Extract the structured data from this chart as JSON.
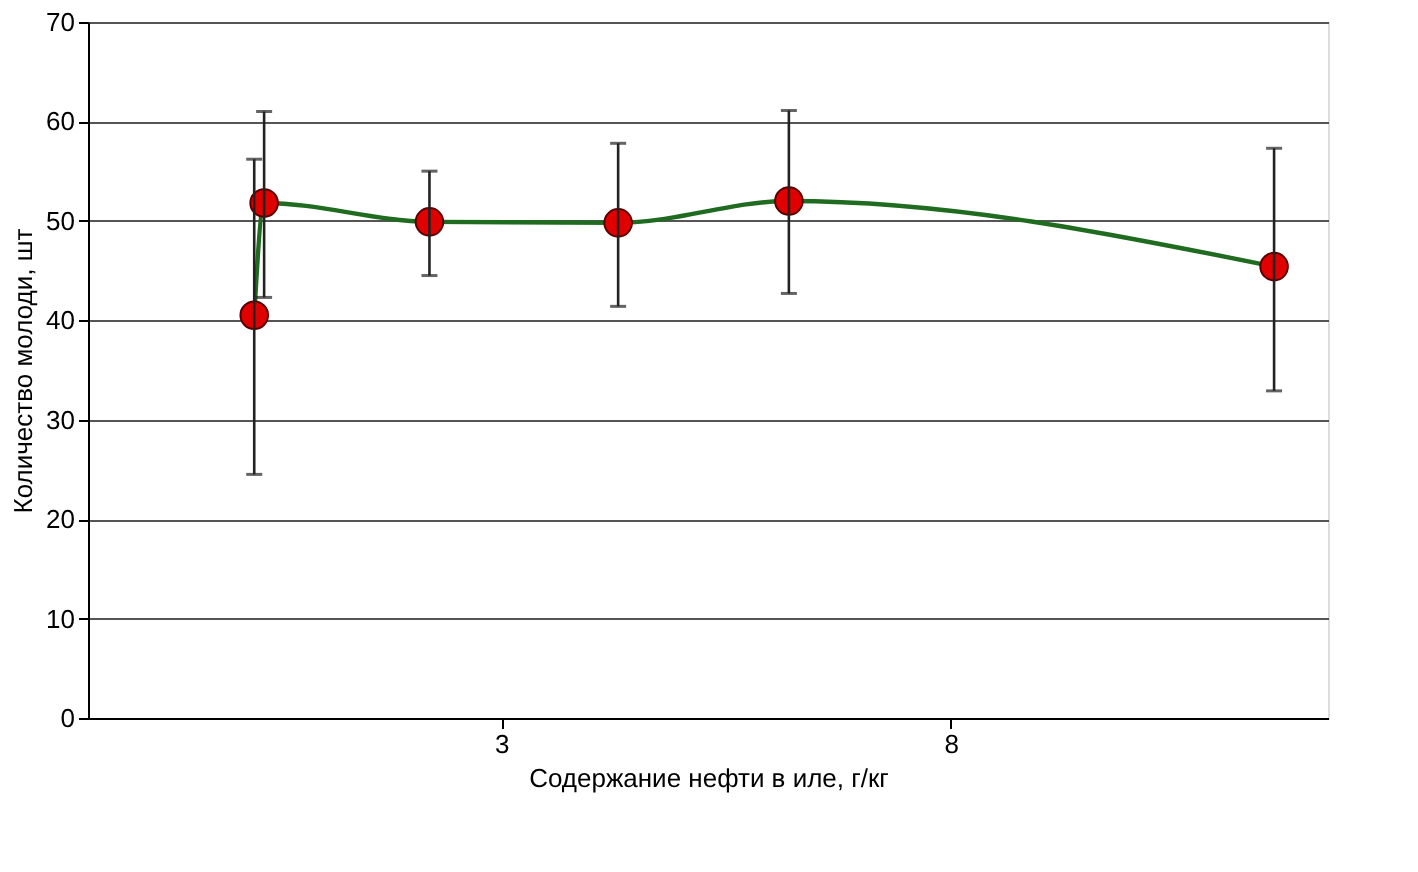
{
  "chart_data": {
    "type": "scatter",
    "xlabel": "Содержание нефти в иле, г/кг",
    "ylabel": "Количество молоди, шт",
    "x": [
      0.25,
      0.36,
      2.2,
      4.3,
      6.2,
      11.6
    ],
    "series": [
      {
        "type": "line",
        "color": "#1f6b1f",
        "values": [
          40.5,
          51.8,
          49.9,
          49.8,
          52,
          45.4
        ]
      },
      {
        "marker": "circle",
        "color": "#e00000",
        "values": [
          40.5,
          51.8,
          49.9,
          49.8,
          52,
          45.4
        ],
        "errors": [
          [
            24.5,
            56.2
          ],
          [
            42.3,
            61
          ],
          [
            44.5,
            55
          ],
          [
            41.4,
            57.8
          ],
          [
            42.7,
            61.1
          ],
          [
            32.9,
            57.3
          ]
        ]
      }
    ],
    "line_style": "solid",
    "xlim": [
      -1.6,
      12.2
    ],
    "xticks": [
      3,
      8
    ],
    "ylim": [
      0,
      70
    ],
    "yticks": [
      0,
      10,
      20,
      30,
      40,
      50,
      60,
      70
    ],
    "grid": "y"
  }
}
